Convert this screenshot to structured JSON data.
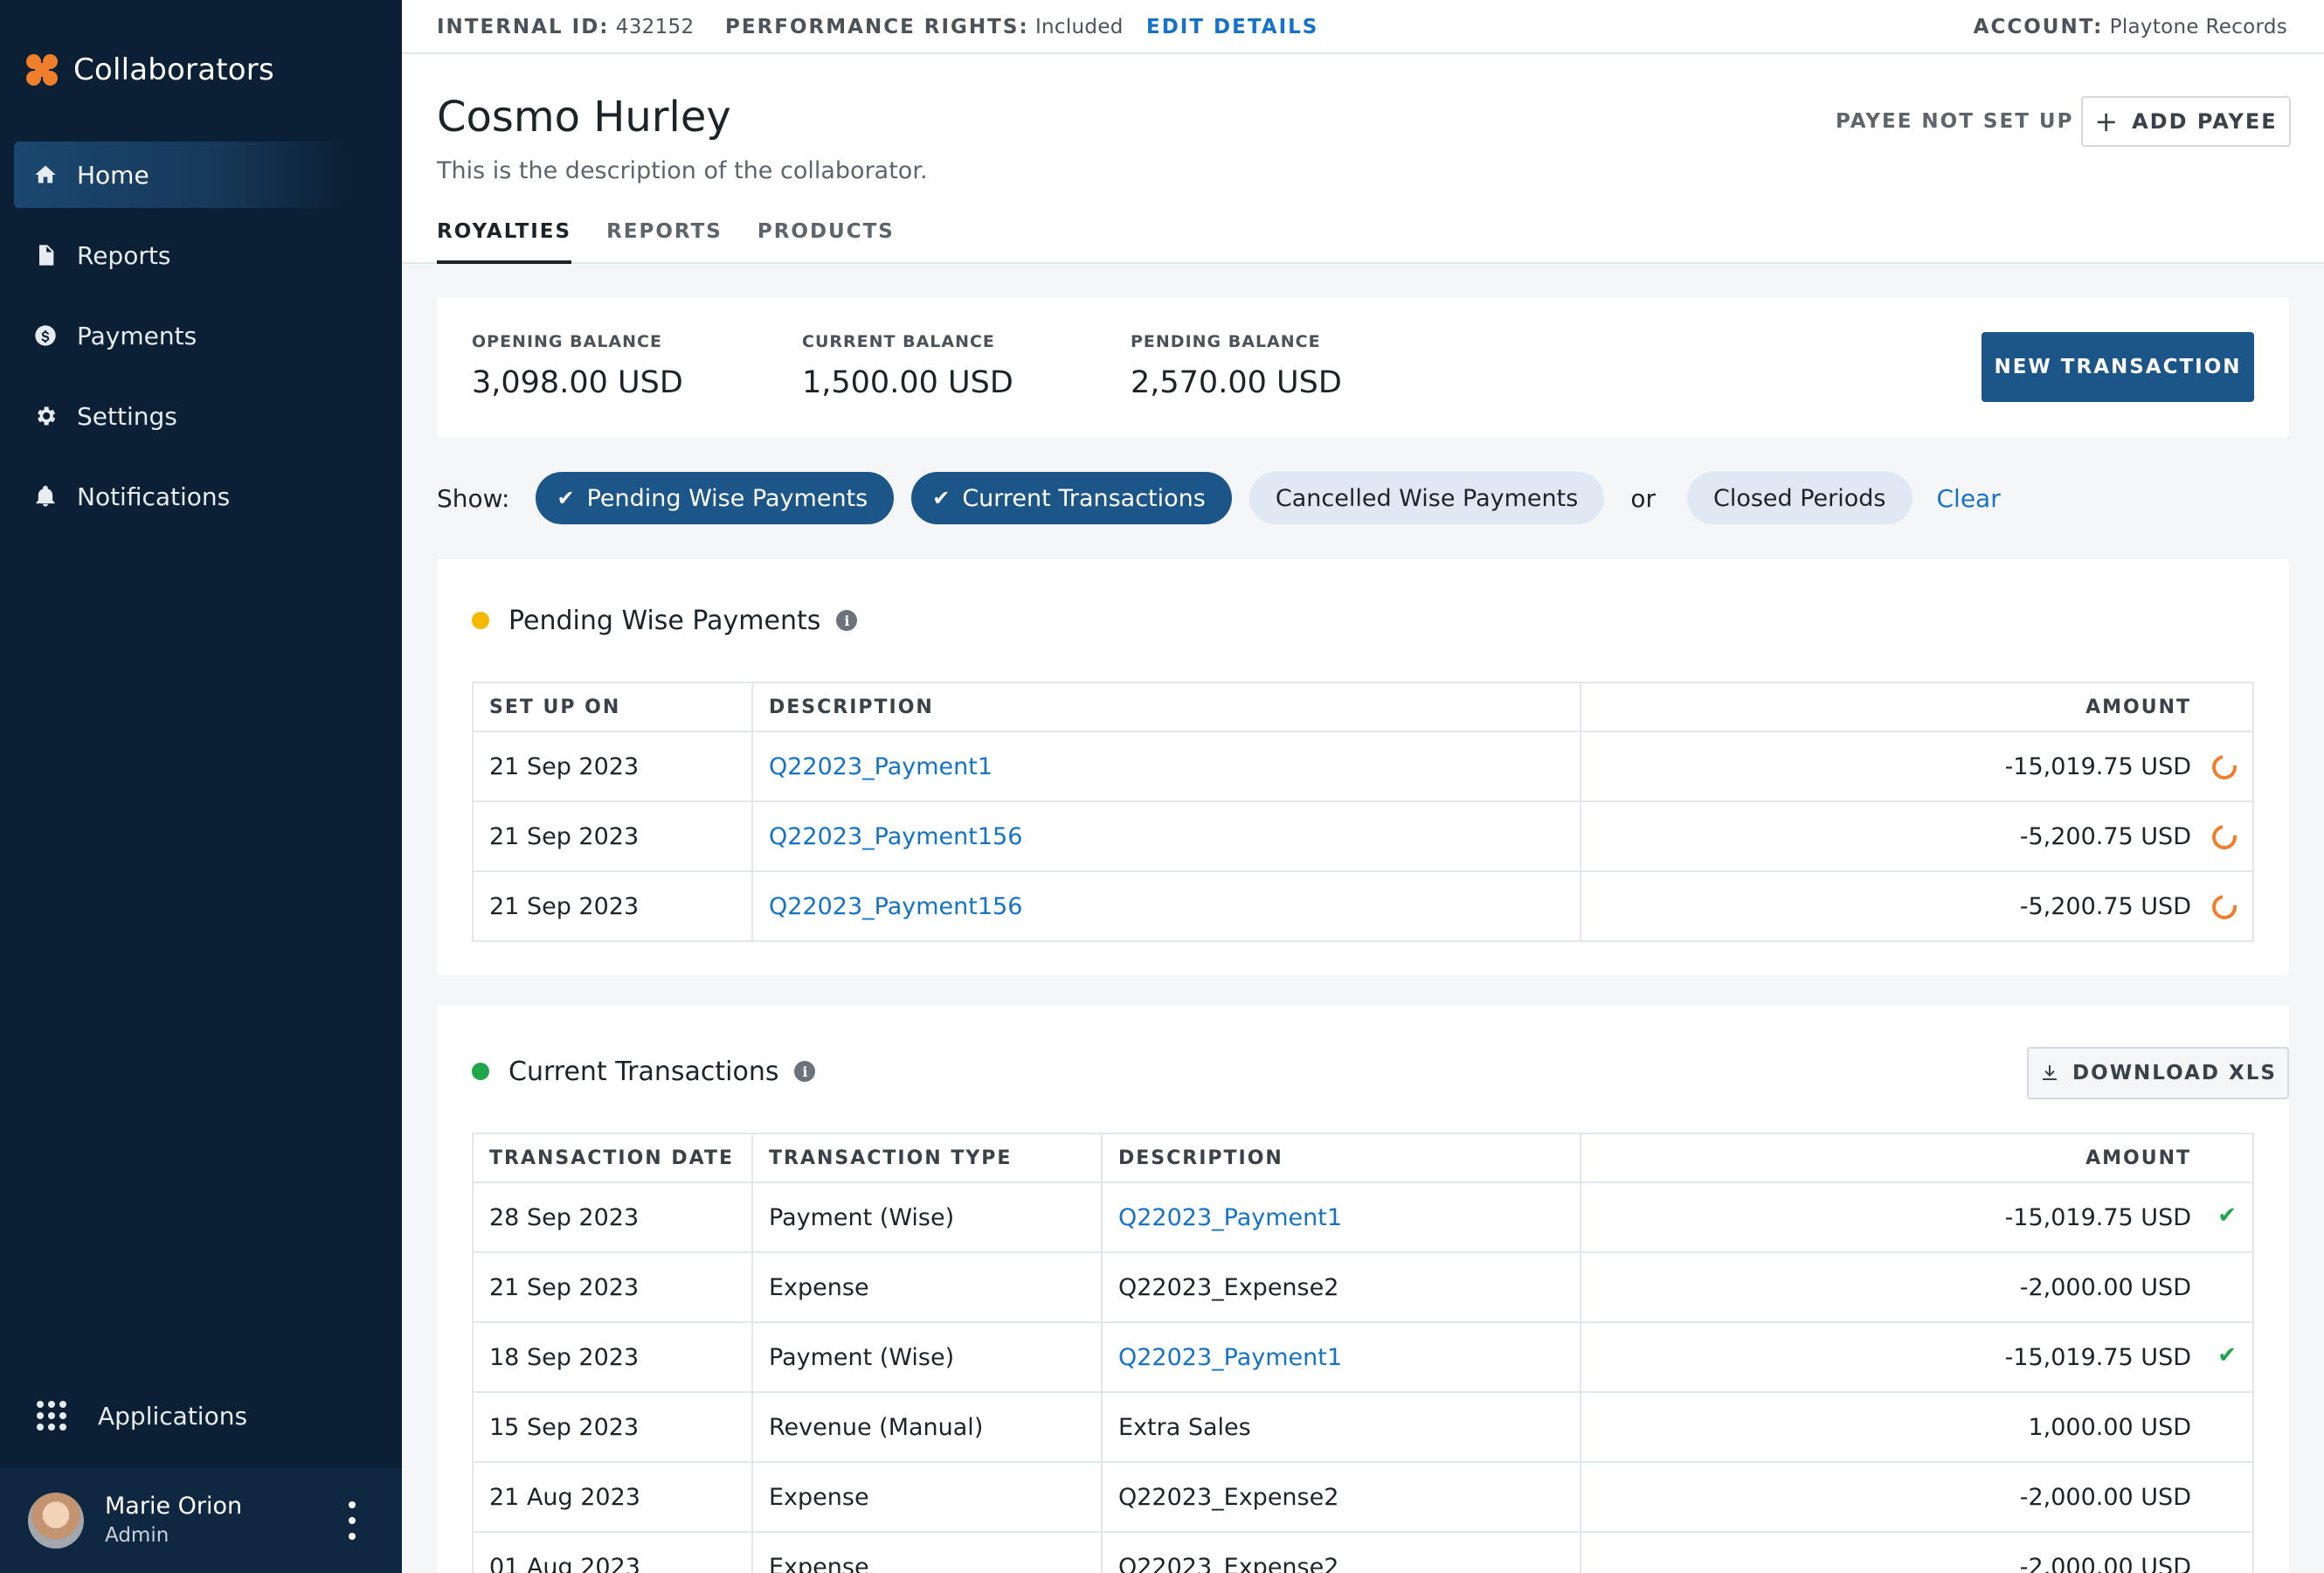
{
  "sidebar": {
    "brand": "Collaborators",
    "items": [
      {
        "label": "Home",
        "icon": "home-icon",
        "active": true
      },
      {
        "label": "Reports",
        "icon": "document-icon"
      },
      {
        "label": "Payments",
        "icon": "dollar-icon"
      },
      {
        "label": "Settings",
        "icon": "gear-icon"
      },
      {
        "label": "Notifications",
        "icon": "bell-icon"
      }
    ],
    "applications_label": "Applications",
    "user": {
      "name": "Marie Orion",
      "role": "Admin"
    }
  },
  "topbar": {
    "internal_id_label": "INTERNAL ID:",
    "internal_id_value": "432152",
    "performance_rights_label": "PERFORMANCE RIGHTS:",
    "performance_rights_value": "Included",
    "edit_details": "EDIT DETAILS",
    "account_label": "ACCOUNT:",
    "account_value": "Playtone Records"
  },
  "header": {
    "title": "Cosmo Hurley",
    "description": "This is the description of the collaborator.",
    "payee_status": "PAYEE NOT SET UP",
    "add_payee": "ADD PAYEE",
    "tabs": [
      {
        "label": "ROYALTIES",
        "active": true
      },
      {
        "label": "REPORTS"
      },
      {
        "label": "PRODUCTS"
      }
    ]
  },
  "balances": {
    "opening": {
      "label": "OPENING BALANCE",
      "value": "3,098.00 USD"
    },
    "current": {
      "label": "CURRENT BALANCE",
      "value": "1,500.00 USD"
    },
    "pending": {
      "label": "PENDING BALANCE",
      "value": "2,570.00 USD"
    },
    "new_transaction": "NEW TRANSACTION"
  },
  "filters": {
    "show_label": "Show:",
    "chips": [
      {
        "label": "Pending Wise Payments",
        "selected": true
      },
      {
        "label": "Current Transactions",
        "selected": true
      },
      {
        "label": "Cancelled Wise Payments",
        "selected": false
      }
    ],
    "or_label": "or",
    "closed_periods": "Closed Periods",
    "clear": "Clear"
  },
  "pending": {
    "title": "Pending Wise Payments",
    "dot_color": "#f5b800",
    "columns": [
      "SET UP ON",
      "DESCRIPTION",
      "AMOUNT"
    ],
    "rows": [
      {
        "date": "21 Sep 2023",
        "description": "Q22023_Payment1",
        "amount": "-15,019.75 USD"
      },
      {
        "date": "21 Sep 2023",
        "description": "Q22023_Payment156",
        "amount": "-5,200.75 USD"
      },
      {
        "date": "21 Sep 2023",
        "description": "Q22023_Payment156",
        "amount": "-5,200.75 USD"
      }
    ]
  },
  "current": {
    "title": "Current Transactions",
    "dot_color": "#1fa64a",
    "download": "DOWNLOAD XLS",
    "columns": [
      "TRANSACTION DATE",
      "TRANSACTION TYPE",
      "DESCRIPTION",
      "AMOUNT"
    ],
    "rows": [
      {
        "date": "28 Sep 2023",
        "type": "Payment (Wise)",
        "description": "Q22023_Payment1",
        "amount": "-15,019.75 USD"
      },
      {
        "date": "21 Sep 2023",
        "type": "Expense",
        "description": "Q22023_Expense2",
        "amount": "-2,000.00 USD"
      },
      {
        "date": "18 Sep 2023",
        "type": "Payment (Wise)",
        "description": "Q22023_Payment1",
        "amount": "-15,019.75 USD"
      },
      {
        "date": "15 Sep 2023",
        "type": "Revenue (Manual)",
        "description": "Extra Sales",
        "amount": "1,000.00 USD"
      },
      {
        "date": "21 Aug 2023",
        "type": "Expense",
        "description": "Q22023_Expense2",
        "amount": "-2,000.00 USD"
      },
      {
        "date": "01 Aug 2023",
        "type": "Expense",
        "description": "Q22023_Expense2",
        "amount": "-2,000.00 USD"
      }
    ]
  }
}
